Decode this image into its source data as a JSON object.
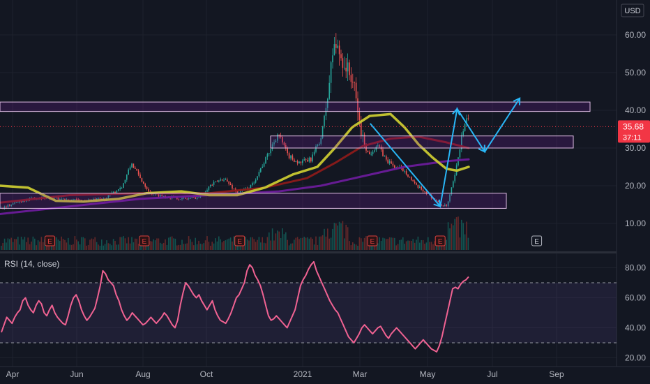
{
  "currency": "USD",
  "price": {
    "last": "35.68",
    "countdown": "37:11",
    "up_color": "#26a69a",
    "down_color": "#ef5350",
    "label_color": "#f23645"
  },
  "colors": {
    "background": "#131722",
    "grid": "#1e222d",
    "text": "#b2b5be",
    "zone_fill": "#7b1fa2",
    "zone_stroke": "#e1bee7",
    "arrow": "#29b6f6",
    "rsi_line": "#f06292",
    "rsi_band": "#7e57c2",
    "ma_fast": "#c9c931",
    "ma_mid": "#8b1a1a",
    "ma_slow": "#6a1b9a"
  },
  "earnings_marker": "E",
  "chart_data": [
    {
      "type": "candlestick",
      "title": "",
      "y_axis": {
        "ticks": [
          "10.00",
          "20.00",
          "30.00",
          "40.00",
          "50.00",
          "60.00"
        ],
        "range": [
          3.5,
          67
        ]
      },
      "x_axis": {
        "ticks": [
          "Apr",
          "Jun",
          "Aug",
          "Oct",
          "2021",
          "Mar",
          "May",
          "Jul",
          "Sep"
        ]
      },
      "overlays": [
        {
          "kind": "moving-average",
          "color": "yellow"
        },
        {
          "kind": "moving-average",
          "color": "dark-red"
        },
        {
          "kind": "moving-average",
          "color": "purple"
        }
      ],
      "zones": [
        {
          "from": 39.7,
          "to": 42.2
        },
        {
          "from": 30.0,
          "to": 33.2
        },
        {
          "from": 14.0,
          "to": 18.0
        }
      ],
      "projected_path": [
        {
          "date": "2021-03-08",
          "price": 36.5
        },
        {
          "date": "2021-05-13",
          "price": 14.5
        },
        {
          "date": "2021-05-29",
          "price": 40.4
        },
        {
          "date": "2021-06-24",
          "price": 29.0
        },
        {
          "date": "2021-07-27",
          "price": 43.2
        }
      ],
      "earnings_events": [
        "2020-05-10",
        "2020-08-07",
        "2020-11-05",
        "2021-03-10",
        "2021-05-13",
        "2021-08-12"
      ]
    },
    {
      "type": "line",
      "title": "RSI (14, close)",
      "y_axis": {
        "ticks": [
          "20.00",
          "40.00",
          "60.00",
          "80.00"
        ],
        "range": [
          17,
          87
        ]
      },
      "bands": [
        70,
        30
      ],
      "series": [
        {
          "name": "RSI",
          "values": [
            37,
            42,
            47,
            45,
            43,
            47,
            50,
            52,
            58,
            60,
            55,
            52,
            50,
            55,
            58,
            56,
            50,
            48,
            52,
            55,
            50,
            47,
            45,
            43,
            42,
            48,
            55,
            60,
            62,
            58,
            52,
            48,
            45,
            47,
            50,
            53,
            60,
            68,
            78,
            76,
            72,
            70,
            68,
            62,
            58,
            52,
            48,
            45,
            47,
            50,
            48,
            46,
            44,
            42,
            43,
            45,
            47,
            45,
            43,
            45,
            47,
            50,
            48,
            45,
            42,
            40,
            45,
            55,
            63,
            70,
            68,
            65,
            62,
            60,
            62,
            58,
            55,
            52,
            55,
            58,
            52,
            48,
            45,
            44,
            43,
            46,
            50,
            55,
            60,
            62,
            66,
            70,
            78,
            82,
            80,
            75,
            72,
            68,
            62,
            55,
            48,
            45,
            46,
            48,
            46,
            44,
            42,
            40,
            44,
            48,
            52,
            60,
            68,
            72,
            75,
            79,
            82,
            84,
            78,
            74,
            70,
            66,
            62,
            58,
            55,
            52,
            50,
            46,
            42,
            38,
            34,
            32,
            30,
            33,
            36,
            40,
            42,
            40,
            38,
            36,
            38,
            40,
            41,
            38,
            35,
            33,
            36,
            38,
            40,
            38,
            36,
            34,
            32,
            30,
            28,
            26,
            28,
            30,
            32,
            30,
            28,
            26,
            25,
            24,
            28,
            34,
            42,
            50,
            58,
            66,
            67,
            66,
            69,
            71,
            72,
            74
          ]
        }
      ]
    }
  ]
}
